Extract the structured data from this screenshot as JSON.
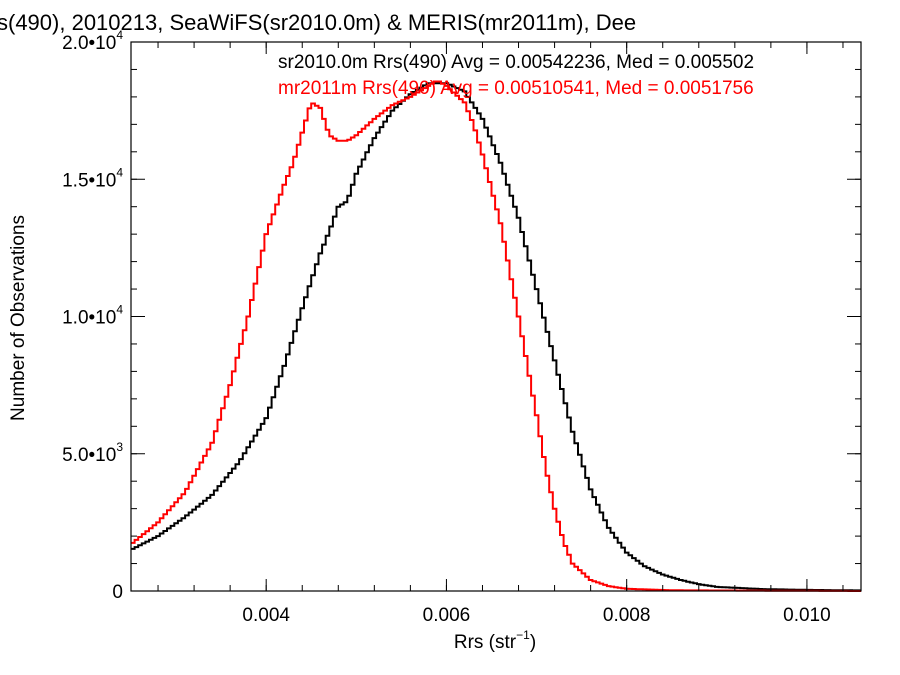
{
  "chart_data": {
    "type": "line",
    "title": "s(490), 2010213, SeaWiFS(sr2010.0m) & MERIS(mr2011m), Dee",
    "xlabel": {
      "base": "Rrs (str",
      "sup": "−1",
      "tail": ")"
    },
    "ylabel": "Number of Observations",
    "xlim": [
      0.0025,
      0.0106
    ],
    "ylim": [
      0,
      20000
    ],
    "grid": false,
    "x_ticks": [
      {
        "value": 0.004,
        "label": "0.004"
      },
      {
        "value": 0.006,
        "label": "0.006"
      },
      {
        "value": 0.008,
        "label": "0.008"
      },
      {
        "value": 0.01,
        "label": "0.010"
      }
    ],
    "x_minor_step": 0.0004,
    "y_ticks": [
      {
        "value": 0,
        "mant": "0",
        "exp": ""
      },
      {
        "value": 5000,
        "mant": "5.0•10",
        "exp": "3"
      },
      {
        "value": 10000,
        "mant": "1.0•10",
        "exp": "4"
      },
      {
        "value": 15000,
        "mant": "1.5•10",
        "exp": "4"
      },
      {
        "value": 20000,
        "mant": "2.0•10",
        "exp": "4"
      }
    ],
    "y_minor_step": 1000,
    "legend": [
      {
        "text": "sr2010.0m Rrs(490) Avg = 0.00542236, Med = 0.005502",
        "color": "#000000"
      },
      {
        "text": "mr2011m Rrs(490) Avg = 0.00510541, Med = 0.0051756",
        "color": "#ff0000"
      }
    ],
    "series": [
      {
        "color": "#000000",
        "points": [
          [
            0.0025,
            1500
          ],
          [
            0.0028,
            2000
          ],
          [
            0.0031,
            2700
          ],
          [
            0.0034,
            3500
          ],
          [
            0.0037,
            4700
          ],
          [
            0.004,
            6300
          ],
          [
            0.0042,
            8200
          ],
          [
            0.0044,
            10300
          ],
          [
            0.0046,
            12300
          ],
          [
            0.0047,
            13100
          ],
          [
            0.0048,
            14000
          ],
          [
            0.0049,
            14200
          ],
          [
            0.005,
            15200
          ],
          [
            0.0052,
            16500
          ],
          [
            0.0054,
            17500
          ],
          [
            0.0056,
            18100
          ],
          [
            0.0058,
            18500
          ],
          [
            0.006,
            18500
          ],
          [
            0.0062,
            18200
          ],
          [
            0.0064,
            17200
          ],
          [
            0.0066,
            15600
          ],
          [
            0.0068,
            13600
          ],
          [
            0.007,
            11000
          ],
          [
            0.0072,
            8400
          ],
          [
            0.0074,
            5800
          ],
          [
            0.0076,
            3700
          ],
          [
            0.0078,
            2300
          ],
          [
            0.008,
            1400
          ],
          [
            0.0082,
            900
          ],
          [
            0.0084,
            600
          ],
          [
            0.0086,
            400
          ],
          [
            0.0088,
            250
          ],
          [
            0.009,
            150
          ],
          [
            0.0095,
            70
          ],
          [
            0.01,
            40
          ],
          [
            0.0106,
            20
          ]
        ]
      },
      {
        "color": "#ff0000",
        "points": [
          [
            0.0025,
            1700
          ],
          [
            0.0028,
            2500
          ],
          [
            0.0031,
            3600
          ],
          [
            0.0034,
            5400
          ],
          [
            0.0036,
            7500
          ],
          [
            0.0038,
            10000
          ],
          [
            0.004,
            13000
          ],
          [
            0.0042,
            14800
          ],
          [
            0.0043,
            15600
          ],
          [
            0.0044,
            16700
          ],
          [
            0.0045,
            17800
          ],
          [
            0.0046,
            17600
          ],
          [
            0.0047,
            16600
          ],
          [
            0.0048,
            16400
          ],
          [
            0.0049,
            16400
          ],
          [
            0.005,
            16600
          ],
          [
            0.0052,
            17200
          ],
          [
            0.0054,
            17700
          ],
          [
            0.0056,
            18000
          ],
          [
            0.0058,
            18400
          ],
          [
            0.0059,
            18600
          ],
          [
            0.006,
            18400
          ],
          [
            0.0062,
            17800
          ],
          [
            0.0063,
            17000
          ],
          [
            0.0064,
            15900
          ],
          [
            0.0066,
            13400
          ],
          [
            0.0068,
            10000
          ],
          [
            0.007,
            6400
          ],
          [
            0.0071,
            4500
          ],
          [
            0.0072,
            3000
          ],
          [
            0.0073,
            1800
          ],
          [
            0.0074,
            1000
          ],
          [
            0.0076,
            400
          ],
          [
            0.0078,
            180
          ],
          [
            0.008,
            80
          ],
          [
            0.0085,
            25
          ],
          [
            0.0106,
            0
          ]
        ]
      }
    ]
  }
}
